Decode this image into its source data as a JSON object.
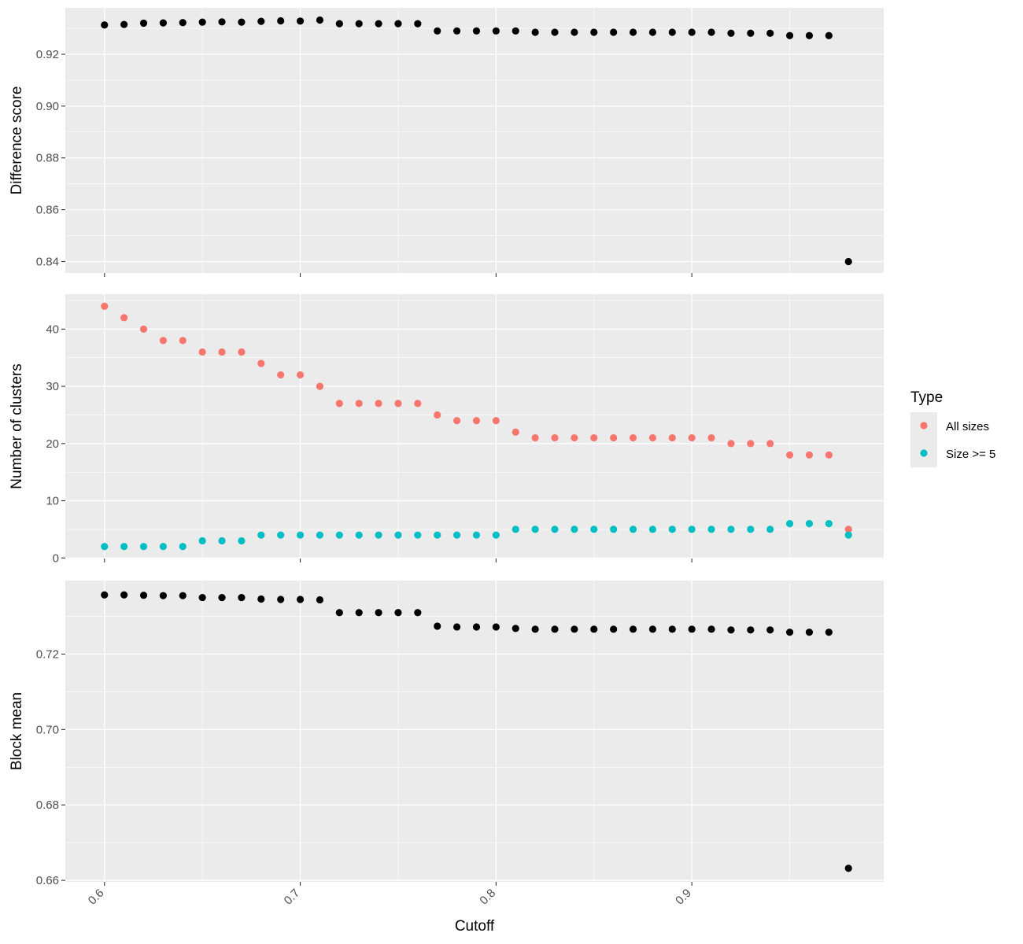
{
  "chart_data": {
    "type": "scatter",
    "facets": 3,
    "xlabel": "Cutoff",
    "xlim": [
      0.58,
      0.998
    ],
    "xticks": [
      0.6,
      0.7,
      0.8,
      0.9
    ],
    "xtick_labels": [
      "0.6",
      "0.7",
      "0.8",
      "0.9"
    ],
    "x": [
      0.6,
      0.61,
      0.62,
      0.63,
      0.64,
      0.65,
      0.66,
      0.67,
      0.68,
      0.69,
      0.7,
      0.71,
      0.72,
      0.73,
      0.74,
      0.75,
      0.76,
      0.77,
      0.78,
      0.79,
      0.8,
      0.81,
      0.82,
      0.83,
      0.84,
      0.85,
      0.86,
      0.87,
      0.88,
      0.89,
      0.9,
      0.91,
      0.92,
      0.93,
      0.94,
      0.95,
      0.96,
      0.97,
      0.98
    ],
    "grid": true,
    "legend": {
      "title": "Type",
      "position": "right",
      "entries": [
        {
          "label": "All sizes",
          "color": "#F8766D"
        },
        {
          "label": "Size >= 5",
          "color": "#00BFC4"
        }
      ]
    },
    "panels": [
      {
        "ylabel": "Difference score",
        "ylim": [
          0.8356,
          0.9379
        ],
        "yticks": [
          0.84,
          0.86,
          0.88,
          0.9,
          0.92
        ],
        "ytick_labels": [
          "0.84",
          "0.86",
          "0.88",
          "0.90",
          "0.92"
        ],
        "series": [
          {
            "color": "#000000",
            "values": [
              0.9313,
              0.9315,
              0.932,
              0.9321,
              0.9322,
              0.9324,
              0.9325,
              0.9324,
              0.9327,
              0.9329,
              0.9328,
              0.9332,
              0.9318,
              0.9318,
              0.9318,
              0.9318,
              0.9318,
              0.929,
              0.929,
              0.929,
              0.929,
              0.929,
              0.9285,
              0.9285,
              0.9285,
              0.9285,
              0.9285,
              0.9285,
              0.9285,
              0.9285,
              0.9285,
              0.9285,
              0.9281,
              0.9281,
              0.9281,
              0.9272,
              0.9272,
              0.9272,
              0.84
            ]
          }
        ]
      },
      {
        "ylabel": "Number of clusters",
        "ylim": [
          -0.1,
          46.1
        ],
        "yticks": [
          0,
          10,
          20,
          30,
          40
        ],
        "ytick_labels": [
          "0",
          "10",
          "20",
          "30",
          "40"
        ],
        "series": [
          {
            "name": "All sizes",
            "color": "#F8766D",
            "values": [
              44,
              42,
              40,
              38,
              38,
              36,
              36,
              36,
              34,
              32,
              32,
              30,
              27,
              27,
              27,
              27,
              27,
              25,
              24,
              24,
              24,
              22,
              21,
              21,
              21,
              21,
              21,
              21,
              21,
              21,
              21,
              21,
              20,
              20,
              20,
              18,
              18,
              18,
              5
            ]
          },
          {
            "name": "Size >= 5",
            "color": "#00BFC4",
            "values": [
              2,
              2,
              2,
              2,
              2,
              3,
              3,
              3,
              4,
              4,
              4,
              4,
              4,
              4,
              4,
              4,
              4,
              4,
              4,
              4,
              4,
              5,
              5,
              5,
              5,
              5,
              5,
              5,
              5,
              5,
              5,
              5,
              5,
              5,
              5,
              6,
              6,
              6,
              4
            ]
          }
        ]
      },
      {
        "ylabel": "Block mean",
        "ylim": [
          0.6596,
          0.7395
        ],
        "yticks": [
          0.66,
          0.68,
          0.7,
          0.72
        ],
        "ytick_labels": [
          "0.66",
          "0.68",
          "0.70",
          "0.72"
        ],
        "series": [
          {
            "color": "#000000",
            "values": [
              0.7357,
              0.7357,
              0.7356,
              0.7355,
              0.7355,
              0.735,
              0.735,
              0.735,
              0.7346,
              0.7345,
              0.7345,
              0.7344,
              0.731,
              0.731,
              0.731,
              0.731,
              0.731,
              0.7274,
              0.7272,
              0.7272,
              0.7272,
              0.7268,
              0.7266,
              0.7266,
              0.7266,
              0.7266,
              0.7266,
              0.7266,
              0.7266,
              0.7266,
              0.7266,
              0.7266,
              0.7264,
              0.7264,
              0.7264,
              0.7258,
              0.7258,
              0.7258,
              0.6632
            ]
          }
        ]
      }
    ]
  }
}
